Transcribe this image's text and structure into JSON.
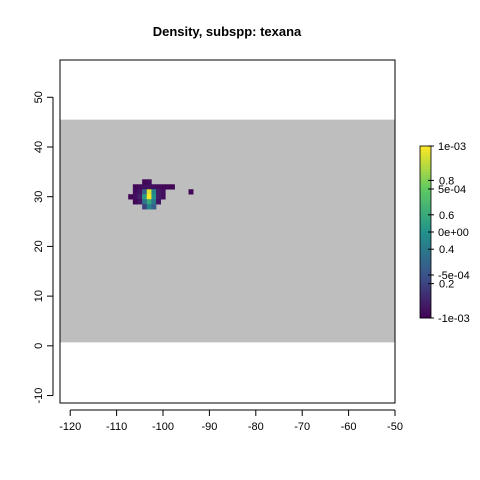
{
  "chart_data": {
    "type": "heatmap",
    "title": "Density, subspp: texana",
    "xlabel": "",
    "ylabel": "",
    "xlim": [
      -122.2,
      -50
    ],
    "ylim": [
      -11.5,
      57.5
    ],
    "x_ticks": [
      -120,
      -110,
      -100,
      -90,
      -80,
      -70,
      -60,
      -50
    ],
    "y_ticks": [
      -10,
      0,
      10,
      20,
      30,
      40,
      50
    ],
    "grid": false,
    "background_band": {
      "lat_min": 0.7,
      "lat_max": 45.5,
      "color": "#bebebe"
    },
    "cell_size_deg": 1.0,
    "cells": [
      {
        "lon": -104,
        "lat": 33,
        "v": 0.02
      },
      {
        "lon": -103,
        "lat": 33,
        "v": 0.03
      },
      {
        "lon": -106,
        "lat": 32,
        "v": 0.02
      },
      {
        "lon": -105,
        "lat": 32,
        "v": 0.03
      },
      {
        "lon": -104,
        "lat": 32,
        "v": 0.04
      },
      {
        "lon": -103,
        "lat": 32,
        "v": 0.05
      },
      {
        "lon": -102,
        "lat": 32,
        "v": 0.04
      },
      {
        "lon": -101,
        "lat": 32,
        "v": 0.03
      },
      {
        "lon": -100,
        "lat": 32,
        "v": 0.02
      },
      {
        "lon": -99,
        "lat": 32,
        "v": 0.02
      },
      {
        "lon": -98,
        "lat": 32,
        "v": 0.02
      },
      {
        "lon": -106,
        "lat": 31,
        "v": 0.03
      },
      {
        "lon": -105,
        "lat": 31,
        "v": 0.06
      },
      {
        "lon": -104,
        "lat": 31,
        "v": 0.32
      },
      {
        "lon": -103,
        "lat": 31,
        "v": 0.95
      },
      {
        "lon": -102,
        "lat": 31,
        "v": 0.45
      },
      {
        "lon": -101,
        "lat": 31,
        "v": 0.08
      },
      {
        "lon": -100,
        "lat": 31,
        "v": 0.04
      },
      {
        "lon": -94,
        "lat": 31,
        "v": 0.02
      },
      {
        "lon": -107,
        "lat": 30,
        "v": 0.02
      },
      {
        "lon": -106,
        "lat": 30,
        "v": 0.04
      },
      {
        "lon": -105,
        "lat": 30,
        "v": 0.1
      },
      {
        "lon": -104,
        "lat": 30,
        "v": 0.55
      },
      {
        "lon": -103,
        "lat": 30,
        "v": 1.0
      },
      {
        "lon": -102,
        "lat": 30,
        "v": 0.5
      },
      {
        "lon": -101,
        "lat": 30,
        "v": 0.08
      },
      {
        "lon": -100,
        "lat": 30,
        "v": 0.04
      },
      {
        "lon": -106,
        "lat": 29,
        "v": 0.02
      },
      {
        "lon": -105,
        "lat": 29,
        "v": 0.06
      },
      {
        "lon": -104,
        "lat": 29,
        "v": 0.38
      },
      {
        "lon": -103,
        "lat": 29,
        "v": 0.6
      },
      {
        "lon": -102,
        "lat": 29,
        "v": 0.4
      },
      {
        "lon": -101,
        "lat": 29,
        "v": 0.06
      },
      {
        "lon": -104,
        "lat": 28,
        "v": 0.2
      },
      {
        "lon": -103,
        "lat": 28,
        "v": 0.45
      },
      {
        "lon": -102,
        "lat": 28,
        "v": 0.3
      }
    ],
    "colorbar": {
      "min": 0.0,
      "max": 1.0,
      "ticks_a": [
        {
          "value": 0.2,
          "label": "0.2"
        },
        {
          "value": 0.4,
          "label": "0.4"
        },
        {
          "value": 0.6,
          "label": "0.6"
        },
        {
          "value": 0.8,
          "label": "0.8"
        }
      ],
      "ticks_b": [
        {
          "value": 0.0,
          "label": "-1e-03"
        },
        {
          "value": 0.25,
          "label": "-5e-04"
        },
        {
          "value": 0.5,
          "label": "0e+00"
        },
        {
          "value": 0.75,
          "label": "5e-04"
        },
        {
          "value": 1.0,
          "label": "1e-03"
        }
      ]
    }
  }
}
